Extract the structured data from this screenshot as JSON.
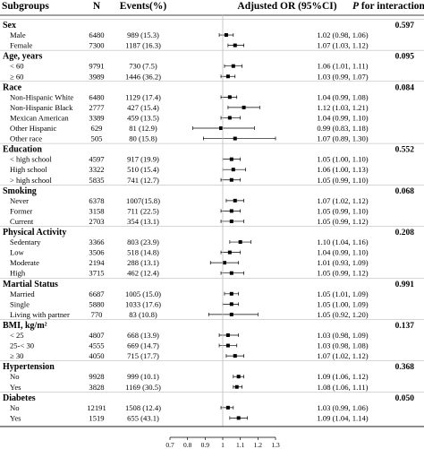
{
  "header": {
    "subgroups": "Subgroups",
    "n": "N",
    "events": "Events(%)",
    "or": "Adjusted OR (95%CI)",
    "p_italic": "P",
    "p_rest": " for interaction"
  },
  "chart_data": {
    "type": "forest",
    "x_ticks": [
      "0.7",
      "0.8",
      "0.9",
      "1",
      "1.1",
      "1.2",
      "1.3"
    ],
    "xlim": [
      0.7,
      1.3
    ],
    "reference_line": 1.0,
    "groups": [
      {
        "name": "Sex",
        "p": "0.597",
        "rows": [
          {
            "label": "Male",
            "n": "6480",
            "events": "989 (15.3)",
            "or_text": "1.02 (0.98, 1.06)",
            "or": 1.02,
            "lo": 0.98,
            "hi": 1.06
          },
          {
            "label": "Female",
            "n": "7300",
            "events": "1187 (16.3)",
            "or_text": "1.07 (1.03, 1.12)",
            "or": 1.07,
            "lo": 1.03,
            "hi": 1.12
          }
        ]
      },
      {
        "name": "Age, years",
        "p": "0.095",
        "rows": [
          {
            "label": "< 60",
            "n": "9791",
            "events": "730 (7.5)",
            "or_text": "1.06 (1.01, 1.11)",
            "or": 1.06,
            "lo": 1.01,
            "hi": 1.11
          },
          {
            "label": "≥ 60",
            "n": "3989",
            "events": "1446 (36.2)",
            "or_text": "1.03 (0.99, 1.07)",
            "or": 1.03,
            "lo": 0.99,
            "hi": 1.07
          }
        ]
      },
      {
        "name": "Race",
        "p": "0.084",
        "rows": [
          {
            "label": "Non-Hispanic White",
            "n": "6480",
            "events": "1129 (17.4)",
            "or_text": "1.04 (0.99, 1.08)",
            "or": 1.04,
            "lo": 0.99,
            "hi": 1.08
          },
          {
            "label": "Non-Hispanic Black",
            "n": "2777",
            "events": "427 (15.4)",
            "or_text": "1.12 (1.03, 1.21)",
            "or": 1.12,
            "lo": 1.03,
            "hi": 1.21
          },
          {
            "label": "Mexican American",
            "n": "3389",
            "events": "459 (13.5)",
            "or_text": "1.04 (0.99, 1.10)",
            "or": 1.04,
            "lo": 0.99,
            "hi": 1.1
          },
          {
            "label": "Other Hispanic",
            "n": "629",
            "events": "81 (12.9)",
            "or_text": "0.99 (0.83, 1.18)",
            "or": 0.99,
            "lo": 0.83,
            "hi": 1.18
          },
          {
            "label": "Other race",
            "n": "505",
            "events": "80 (15.8)",
            "or_text": "1.07 (0.89, 1.30)",
            "or": 1.07,
            "lo": 0.89,
            "hi": 1.3
          }
        ]
      },
      {
        "name": "Education",
        "p": "0.552",
        "rows": [
          {
            "label": "< high school",
            "n": "4597",
            "events": "917 (19.9)",
            "or_text": "1.05 (1.00, 1.10)",
            "or": 1.05,
            "lo": 1.0,
            "hi": 1.1
          },
          {
            "label": "High school",
            "n": "3322",
            "events": "510 (15.4)",
            "or_text": "1.06 (1.00, 1.13)",
            "or": 1.06,
            "lo": 1.0,
            "hi": 1.13
          },
          {
            "label": "> high school",
            "n": "5835",
            "events": "741 (12.7)",
            "or_text": "1.05 (0.99, 1.10)",
            "or": 1.05,
            "lo": 0.99,
            "hi": 1.1
          }
        ]
      },
      {
        "name": "Smoking",
        "p": "0.068",
        "rows": [
          {
            "label": "Never",
            "n": "6378",
            "events": "1007(15.8)",
            "or_text": "1.07 (1.02, 1.12)",
            "or": 1.07,
            "lo": 1.02,
            "hi": 1.12
          },
          {
            "label": "Former",
            "n": "3158",
            "events": "711 (22.5)",
            "or_text": "1.05 (0.99, 1.10)",
            "or": 1.05,
            "lo": 0.99,
            "hi": 1.1
          },
          {
            "label": "Current",
            "n": "2703",
            "events": "354 (13.1)",
            "or_text": "1.05 (0.99, 1.12)",
            "or": 1.05,
            "lo": 0.99,
            "hi": 1.12
          }
        ]
      },
      {
        "name": "Physical Activity",
        "p": "0.208",
        "rows": [
          {
            "label": "Sedentary",
            "n": "3366",
            "events": "803 (23.9)",
            "or_text": "1.10 (1.04, 1.16)",
            "or": 1.1,
            "lo": 1.04,
            "hi": 1.16
          },
          {
            "label": "Low",
            "n": "3506",
            "events": "518 (14.8)",
            "or_text": "1.04 (0.99, 1.10)",
            "or": 1.04,
            "lo": 0.99,
            "hi": 1.1
          },
          {
            "label": "Moderate",
            "n": "2194",
            "events": "288 (13.1)",
            "or_text": "1.01 (0.93, 1.09)",
            "or": 1.01,
            "lo": 0.93,
            "hi": 1.09
          },
          {
            "label": "High",
            "n": "3715",
            "events": "462 (12.4)",
            "or_text": "1.05 (0.99, 1.12)",
            "or": 1.05,
            "lo": 0.99,
            "hi": 1.12
          }
        ]
      },
      {
        "name": "Martial Status",
        "p": "0.991",
        "rows": [
          {
            "label": "Married",
            "n": "6687",
            "events": "1005 (15.0)",
            "or_text": "1.05 (1.01, 1.09)",
            "or": 1.05,
            "lo": 1.01,
            "hi": 1.09
          },
          {
            "label": "Single",
            "n": "5880",
            "events": "1033 (17.6)",
            "or_text": "1.05 (1.00, 1.09)",
            "or": 1.05,
            "lo": 1.0,
            "hi": 1.09
          },
          {
            "label": "Living with partner",
            "n": "770",
            "events": "83 (10.8)",
            "or_text": "1.05 (0.92, 1.20)",
            "or": 1.05,
            "lo": 0.92,
            "hi": 1.2
          }
        ]
      },
      {
        "name": "BMI, kg/m²",
        "p": "0.137",
        "rows": [
          {
            "label": "< 25",
            "n": "4807",
            "events": "668 (13.9)",
            "or_text": "1.03 (0.98, 1.09)",
            "or": 1.03,
            "lo": 0.98,
            "hi": 1.09
          },
          {
            "label": "25-< 30",
            "n": "4555",
            "events": "669 (14.7)",
            "or_text": "1.03 (0.98, 1.08)",
            "or": 1.03,
            "lo": 0.98,
            "hi": 1.08
          },
          {
            "label": "≥ 30",
            "n": "4050",
            "events": "715 (17.7)",
            "or_text": "1.07 (1.02, 1.12)",
            "or": 1.07,
            "lo": 1.02,
            "hi": 1.12
          }
        ]
      },
      {
        "name": "Hypertension",
        "p": "0.368",
        "rows": [
          {
            "label": "No",
            "n": "9928",
            "events": "999 (10.1)",
            "or_text": "1.09 (1.06, 1.12)",
            "or": 1.09,
            "lo": 1.06,
            "hi": 1.12
          },
          {
            "label": "Yes",
            "n": "3828",
            "events": "1169 (30.5)",
            "or_text": "1.08 (1.06, 1.11)",
            "or": 1.08,
            "lo": 1.06,
            "hi": 1.11
          }
        ]
      },
      {
        "name": "Diabetes",
        "p": "0.050",
        "rows": [
          {
            "label": "No",
            "n": "12191",
            "events": "1508 (12.4)",
            "or_text": "1.03 (0.99, 1.06)",
            "or": 1.03,
            "lo": 0.99,
            "hi": 1.06
          },
          {
            "label": "Yes",
            "n": "1519",
            "events": "655 (43.1)",
            "or_text": "1.09 (1.04, 1.14)",
            "or": 1.09,
            "lo": 1.04,
            "hi": 1.14
          }
        ]
      }
    ]
  }
}
